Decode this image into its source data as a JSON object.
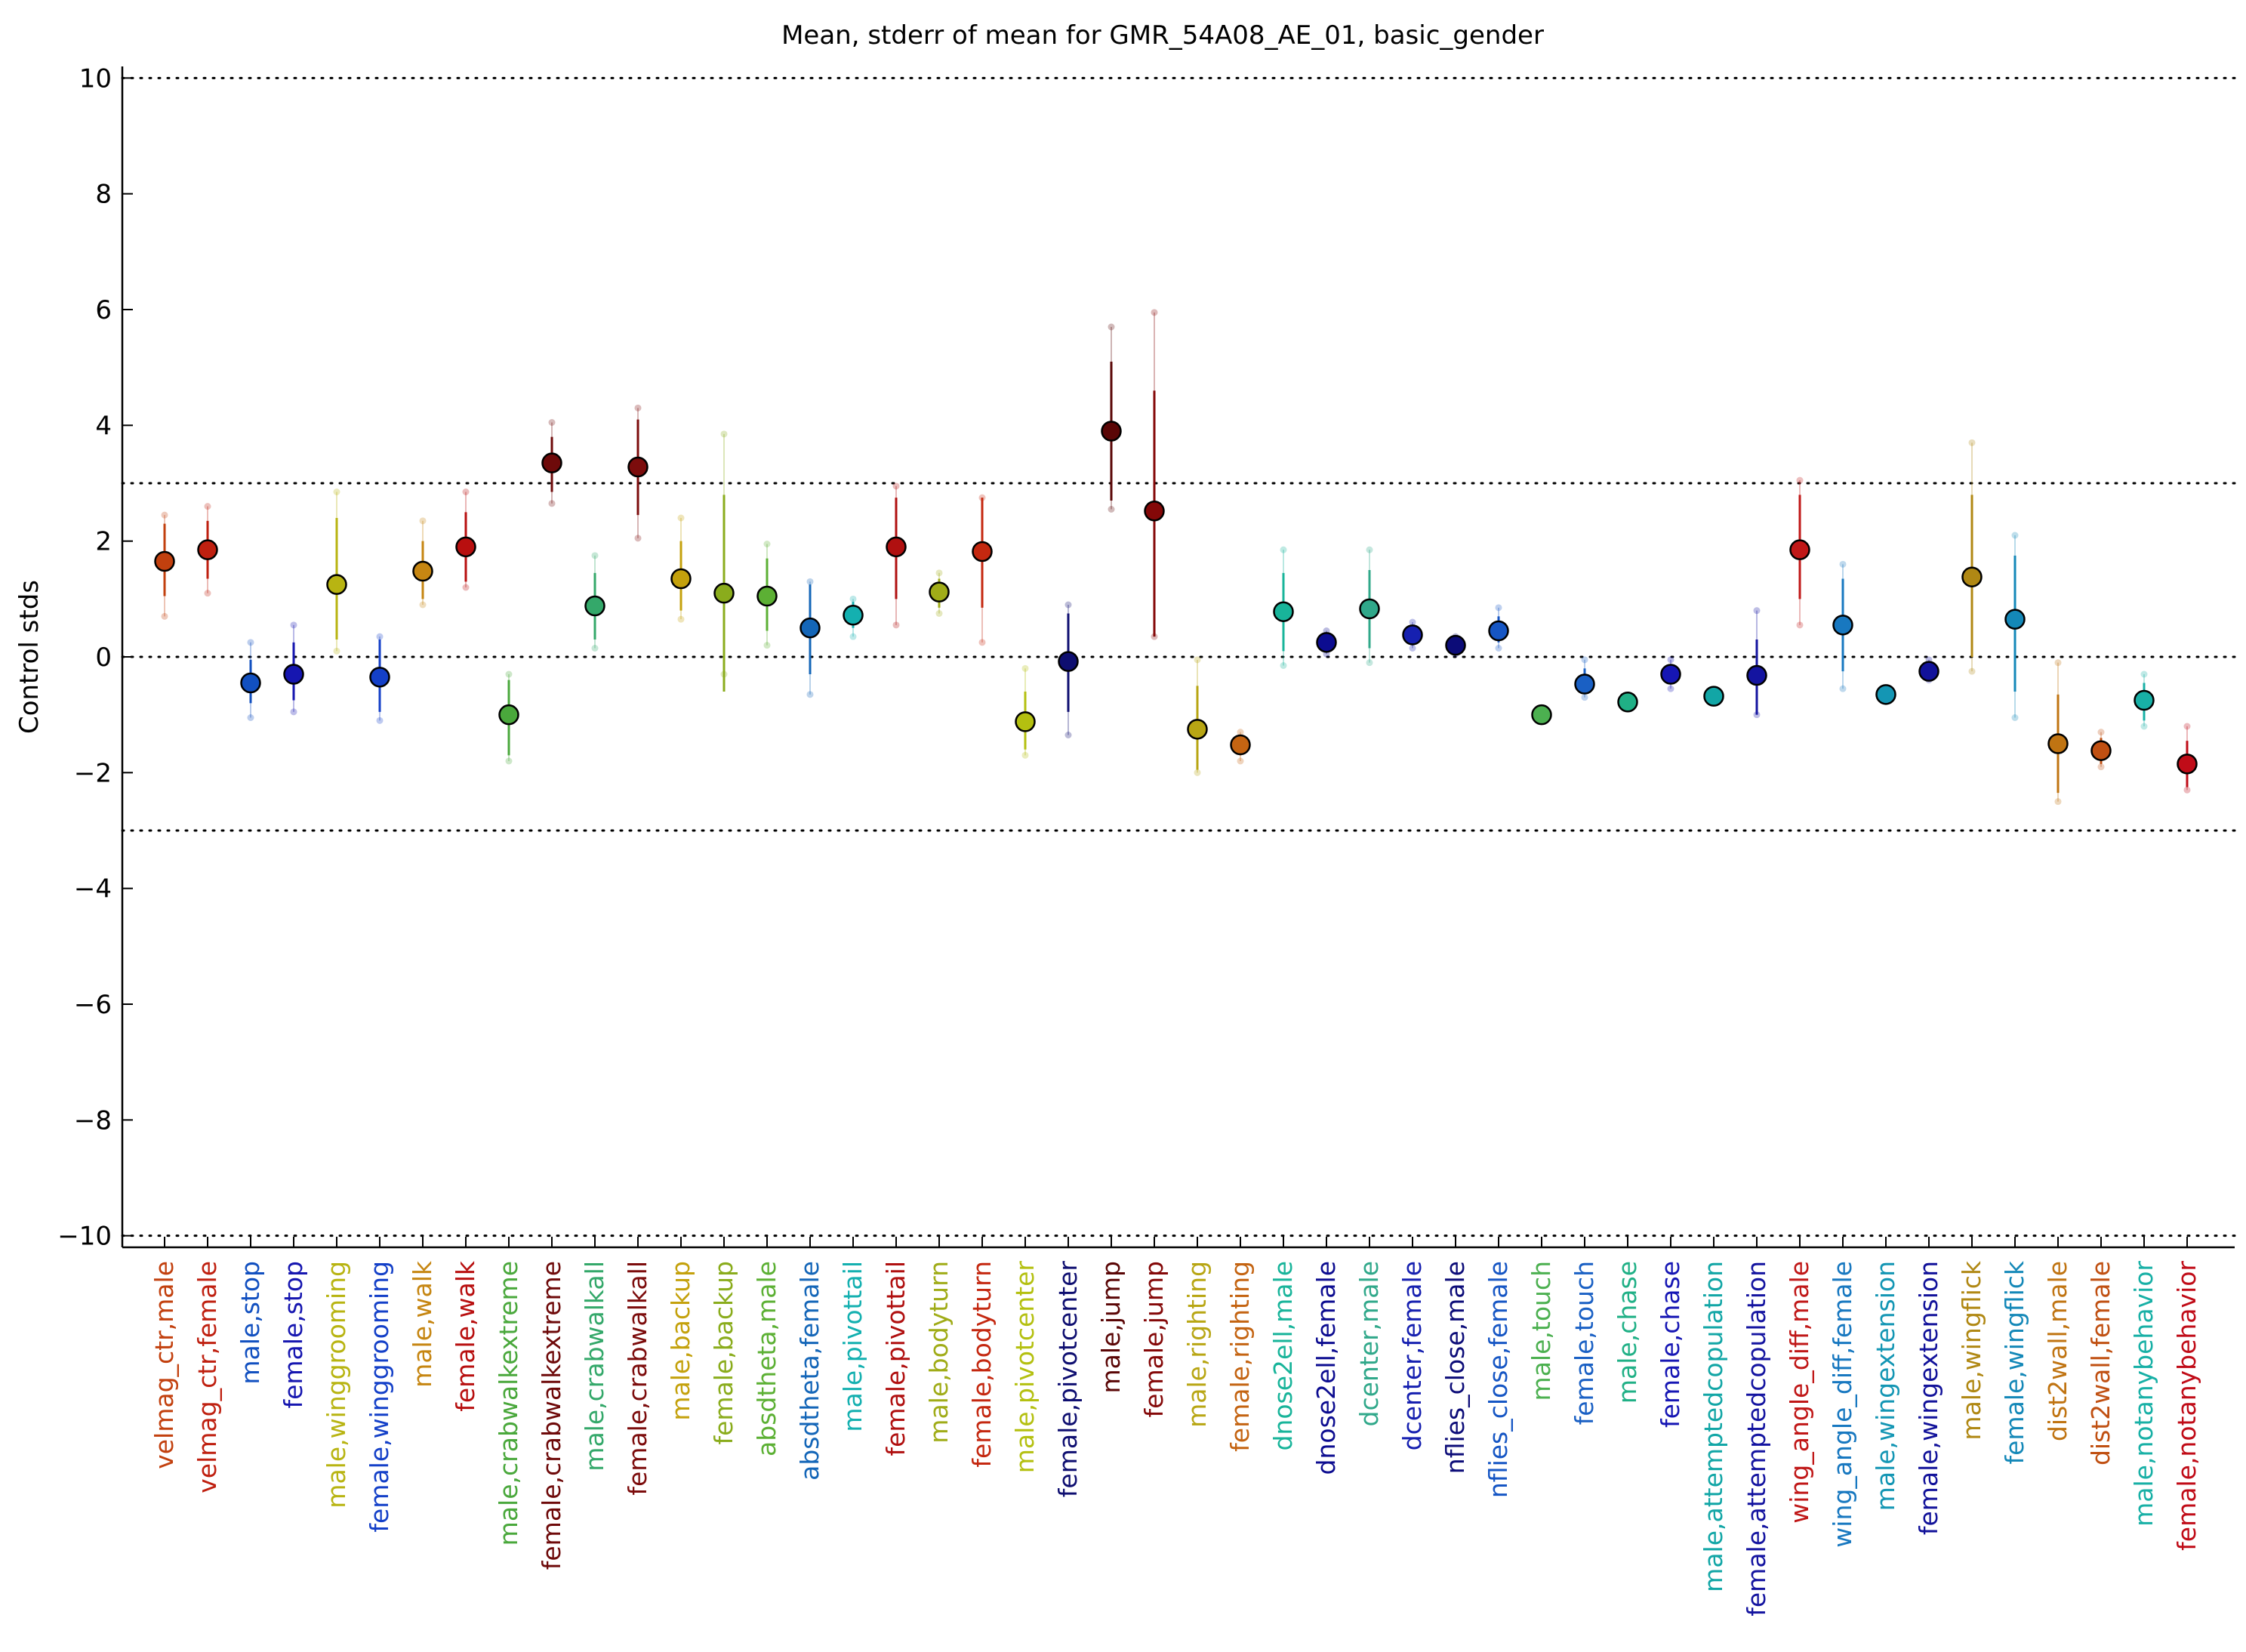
{
  "chart_data": {
    "type": "scatter",
    "title": "Mean, stderr of mean for GMR_54A08_AE_01, basic_gender",
    "xlabel": "",
    "ylabel": "Control stds",
    "ylim": [
      -10.2,
      10.2
    ],
    "yticks": [
      "10",
      "8",
      "6",
      "4",
      "2",
      "0",
      "−2",
      "−4",
      "−6",
      "−8",
      "−10"
    ],
    "ytick_values": [
      10,
      8,
      6,
      4,
      2,
      0,
      -2,
      -4,
      -6,
      -8,
      -10
    ],
    "reference_lines": [
      10,
      3,
      0,
      -3,
      -10
    ],
    "grid": false,
    "legend": "none",
    "points": [
      {
        "label": "velmag_ctr,male",
        "mean": 1.65,
        "se_lo": 1.05,
        "se_hi": 2.3,
        "pt_lo": 0.7,
        "pt_hi": 2.45,
        "color": "#c2400e"
      },
      {
        "label": "velmag_ctr,female",
        "mean": 1.85,
        "se_lo": 1.35,
        "se_hi": 2.35,
        "pt_lo": 1.1,
        "pt_hi": 2.6,
        "color": "#bf2010"
      },
      {
        "label": "male,stop",
        "mean": -0.45,
        "se_lo": -0.8,
        "se_hi": -0.05,
        "pt_lo": -1.05,
        "pt_hi": 0.25,
        "color": "#1250c0"
      },
      {
        "label": "female,stop",
        "mean": -0.3,
        "se_lo": -0.75,
        "se_hi": 0.25,
        "pt_lo": -0.95,
        "pt_hi": 0.55,
        "color": "#1616b0"
      },
      {
        "label": "male,winggrooming",
        "mean": 1.25,
        "se_lo": 0.3,
        "se_hi": 2.4,
        "pt_lo": 0.1,
        "pt_hi": 2.85,
        "color": "#b8b412"
      },
      {
        "label": "female,winggrooming",
        "mean": -0.35,
        "se_lo": -0.95,
        "se_hi": 0.3,
        "pt_lo": -1.1,
        "pt_hi": 0.35,
        "color": "#1440c8"
      },
      {
        "label": "male,walk",
        "mean": 1.48,
        "se_lo": 1.0,
        "se_hi": 2.0,
        "pt_lo": 0.9,
        "pt_hi": 2.35,
        "color": "#c68612"
      },
      {
        "label": "female,walk",
        "mean": 1.9,
        "se_lo": 1.3,
        "se_hi": 2.5,
        "pt_lo": 1.2,
        "pt_hi": 2.85,
        "color": "#b80f0f"
      },
      {
        "label": "male,crabwalkextreme",
        "mean": -1.0,
        "se_lo": -1.7,
        "se_hi": -0.4,
        "pt_lo": -1.8,
        "pt_hi": -0.3,
        "color": "#4aa83c"
      },
      {
        "label": "female,crabwalkextreme",
        "mean": 3.35,
        "se_lo": 2.85,
        "se_hi": 3.8,
        "pt_lo": 2.65,
        "pt_hi": 4.05,
        "color": "#6e0a0a"
      },
      {
        "label": "male,crabwalkall",
        "mean": 0.88,
        "se_lo": 0.3,
        "se_hi": 1.45,
        "pt_lo": 0.15,
        "pt_hi": 1.75,
        "color": "#34a86a"
      },
      {
        "label": "female,crabwalkall",
        "mean": 3.28,
        "se_lo": 2.45,
        "se_hi": 4.1,
        "pt_lo": 2.05,
        "pt_hi": 4.3,
        "color": "#7c0c0c"
      },
      {
        "label": "male,backup",
        "mean": 1.35,
        "se_lo": 0.8,
        "se_hi": 2.0,
        "pt_lo": 0.65,
        "pt_hi": 2.4,
        "color": "#c4a10c"
      },
      {
        "label": "female,backup",
        "mean": 1.1,
        "se_lo": -0.6,
        "se_hi": 2.8,
        "pt_lo": -0.3,
        "pt_hi": 3.85,
        "color": "#8aac1c"
      },
      {
        "label": "absdtheta,male",
        "mean": 1.05,
        "se_lo": 0.45,
        "se_hi": 1.7,
        "pt_lo": 0.2,
        "pt_hi": 1.95,
        "color": "#5cb034"
      },
      {
        "label": "absdtheta,female",
        "mean": 0.5,
        "se_lo": -0.3,
        "se_hi": 1.25,
        "pt_lo": -0.65,
        "pt_hi": 1.3,
        "color": "#1466b8"
      },
      {
        "label": "male,pivottail",
        "mean": 0.72,
        "se_lo": 0.5,
        "se_hi": 0.95,
        "pt_lo": 0.35,
        "pt_hi": 1.0,
        "color": "#14b0b0"
      },
      {
        "label": "female,pivottail",
        "mean": 1.9,
        "se_lo": 1.0,
        "se_hi": 2.75,
        "pt_lo": 0.55,
        "pt_hi": 2.95,
        "color": "#b01010"
      },
      {
        "label": "male,bodyturn",
        "mean": 1.12,
        "se_lo": 0.85,
        "se_hi": 1.35,
        "pt_lo": 0.75,
        "pt_hi": 1.45,
        "color": "#a0ac18"
      },
      {
        "label": "female,bodyturn",
        "mean": 1.82,
        "se_lo": 0.85,
        "se_hi": 2.75,
        "pt_lo": 0.25,
        "pt_hi": 2.75,
        "color": "#c42810"
      },
      {
        "label": "male,pivotcenter",
        "mean": -1.12,
        "se_lo": -1.6,
        "se_hi": -0.6,
        "pt_lo": -1.7,
        "pt_hi": -0.2,
        "color": "#b4c010"
      },
      {
        "label": "female,pivotcenter",
        "mean": -0.08,
        "se_lo": -0.95,
        "se_hi": 0.75,
        "pt_lo": -1.35,
        "pt_hi": 0.9,
        "color": "#0e0e70"
      },
      {
        "label": "male,jump",
        "mean": 3.9,
        "se_lo": 2.7,
        "se_hi": 5.1,
        "pt_lo": 2.55,
        "pt_hi": 5.7,
        "color": "#5a0606"
      },
      {
        "label": "female,jump",
        "mean": 2.52,
        "se_lo": 0.35,
        "se_hi": 4.6,
        "pt_lo": 0.35,
        "pt_hi": 5.95,
        "color": "#840808"
      },
      {
        "label": "male,righting",
        "mean": -1.25,
        "se_lo": -1.95,
        "se_hi": -0.5,
        "pt_lo": -2.0,
        "pt_hi": -0.05,
        "color": "#b8a614"
      },
      {
        "label": "female,righting",
        "mean": -1.52,
        "se_lo": -1.7,
        "se_hi": -1.35,
        "pt_lo": -1.8,
        "pt_hi": -1.3,
        "color": "#c46412"
      },
      {
        "label": "dnose2ell,male",
        "mean": 0.78,
        "se_lo": 0.1,
        "se_hi": 1.45,
        "pt_lo": -0.15,
        "pt_hi": 1.85,
        "color": "#18b49a"
      },
      {
        "label": "dnose2ell,female",
        "mean": 0.25,
        "se_lo": 0.1,
        "se_hi": 0.4,
        "pt_lo": 0.05,
        "pt_hi": 0.45,
        "color": "#0c0c90"
      },
      {
        "label": "dcenter,male",
        "mean": 0.83,
        "se_lo": 0.15,
        "se_hi": 1.5,
        "pt_lo": -0.1,
        "pt_hi": 1.85,
        "color": "#30a88a"
      },
      {
        "label": "dcenter,female",
        "mean": 0.38,
        "se_lo": 0.2,
        "se_hi": 0.55,
        "pt_lo": 0.15,
        "pt_hi": 0.6,
        "color": "#1620b0"
      },
      {
        "label": "nflies_close,male",
        "mean": 0.2,
        "se_lo": 0.1,
        "se_hi": 0.3,
        "pt_lo": 0.05,
        "pt_hi": 0.35,
        "color": "#0c0c78"
      },
      {
        "label": "nflies_close,female",
        "mean": 0.45,
        "se_lo": 0.25,
        "se_hi": 0.7,
        "pt_lo": 0.15,
        "pt_hi": 0.85,
        "color": "#1656c4"
      },
      {
        "label": "male,touch",
        "mean": -1.0,
        "se_lo": -1.0,
        "se_hi": -1.0,
        "pt_lo": -1.0,
        "pt_hi": -1.0,
        "color": "#4cb050"
      },
      {
        "label": "female,touch",
        "mean": -0.47,
        "se_lo": -0.6,
        "se_hi": -0.2,
        "pt_lo": -0.7,
        "pt_hi": -0.05,
        "color": "#1a60c4"
      },
      {
        "label": "male,chase",
        "mean": -0.78,
        "se_lo": -0.78,
        "se_hi": -0.78,
        "pt_lo": -0.78,
        "pt_hi": -0.78,
        "color": "#20b086"
      },
      {
        "label": "female,chase",
        "mean": -0.3,
        "se_lo": -0.45,
        "se_hi": -0.15,
        "pt_lo": -0.55,
        "pt_hi": -0.05,
        "color": "#1616b4"
      },
      {
        "label": "male,attemptedcopulation",
        "mean": -0.68,
        "se_lo": -0.68,
        "se_hi": -0.68,
        "pt_lo": -0.68,
        "pt_hi": -0.68,
        "color": "#12a6a6"
      },
      {
        "label": "female,attemptedcopulation",
        "mean": -0.32,
        "se_lo": -1.0,
        "se_hi": 0.3,
        "pt_lo": -1.0,
        "pt_hi": 0.8,
        "color": "#1414a0"
      },
      {
        "label": "wing_angle_diff,male",
        "mean": 1.85,
        "se_lo": 1.0,
        "se_hi": 2.8,
        "pt_lo": 0.55,
        "pt_hi": 3.05,
        "color": "#c01818"
      },
      {
        "label": "wing_angle_diff,female",
        "mean": 0.55,
        "se_lo": -0.25,
        "se_hi": 1.35,
        "pt_lo": -0.55,
        "pt_hi": 1.6,
        "color": "#1878c0"
      },
      {
        "label": "male,wingextension",
        "mean": -0.65,
        "se_lo": -0.65,
        "se_hi": -0.65,
        "pt_lo": -0.65,
        "pt_hi": -0.65,
        "color": "#1496b4"
      },
      {
        "label": "female,wingextension",
        "mean": -0.25,
        "se_lo": -0.35,
        "se_hi": -0.1,
        "pt_lo": -0.4,
        "pt_hi": -0.05,
        "color": "#12129a"
      },
      {
        "label": "male,wingflick",
        "mean": 1.38,
        "se_lo": 0.0,
        "se_hi": 2.8,
        "pt_lo": -0.25,
        "pt_hi": 3.7,
        "color": "#b08814"
      },
      {
        "label": "female,wingflick",
        "mean": 0.65,
        "se_lo": -0.6,
        "se_hi": 1.75,
        "pt_lo": -1.05,
        "pt_hi": 2.1,
        "color": "#1488b8"
      },
      {
        "label": "dist2wall,male",
        "mean": -1.5,
        "se_lo": -2.35,
        "se_hi": -0.65,
        "pt_lo": -2.5,
        "pt_hi": -0.1,
        "color": "#c07412"
      },
      {
        "label": "dist2wall,female",
        "mean": -1.62,
        "se_lo": -1.85,
        "se_hi": -1.4,
        "pt_lo": -1.9,
        "pt_hi": -1.3,
        "color": "#c05012"
      },
      {
        "label": "male,notanybehavior",
        "mean": -0.75,
        "se_lo": -1.1,
        "se_hi": -0.45,
        "pt_lo": -1.2,
        "pt_hi": -0.3,
        "color": "#18b0a6"
      },
      {
        "label": "female,notanybehavior",
        "mean": -1.85,
        "se_lo": -2.25,
        "se_hi": -1.45,
        "pt_lo": -2.3,
        "pt_hi": -1.2,
        "color": "#c00c18"
      }
    ]
  }
}
